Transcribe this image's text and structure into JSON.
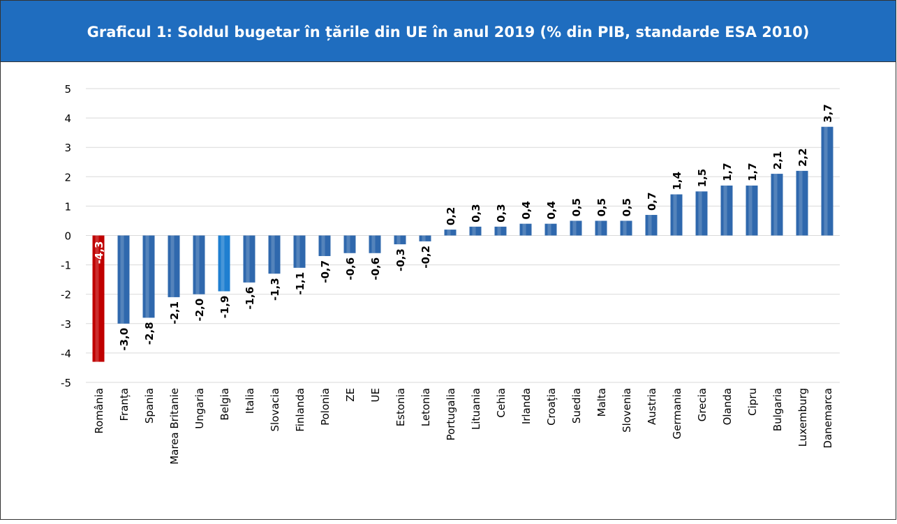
{
  "chart_data": {
    "type": "bar",
    "title": "Graficul 1: Soldul bugetar în țările din UE în anul 2019 (% din PIB, standarde ESA 2010)",
    "categories": [
      "România",
      "Franța",
      "Spania",
      "Marea Britanie",
      "Ungaria",
      "Belgia",
      "Italia",
      "Slovacia",
      "Finlanda",
      "Polonia",
      "ZE",
      "UE",
      "Estonia",
      "Letonia",
      "Portugalia",
      "Lituania",
      "Cehia",
      "Irlanda",
      "Croația",
      "Suedia",
      "Malta",
      "Slovenia",
      "Austria",
      "Germania",
      "Grecia",
      "Olanda",
      "Cipru",
      "Bulgaria",
      "Luxemburg",
      "Danemarca"
    ],
    "values": [
      -4.3,
      -3.0,
      -2.8,
      -2.1,
      -2.0,
      -1.9,
      -1.6,
      -1.3,
      -1.1,
      -0.7,
      -0.6,
      -0.6,
      -0.3,
      -0.2,
      0.2,
      0.3,
      0.3,
      0.4,
      0.4,
      0.5,
      0.5,
      0.5,
      0.7,
      1.4,
      1.5,
      1.7,
      1.7,
      2.1,
      2.2,
      3.7
    ],
    "value_labels": [
      "-4,3",
      "-3,0",
      "-2,8",
      "-2,1",
      "-2,0",
      "-1,9",
      "-1,6",
      "-1,3",
      "-1,1",
      "-0,7",
      "-0,6",
      "-0,6",
      "-0,3",
      "-0,2",
      "0,2",
      "0,3",
      "0,3",
      "0,4",
      "0,4",
      "0,5",
      "0,5",
      "0,5",
      "0,7",
      "1,4",
      "1,5",
      "1,7",
      "1,7",
      "2,1",
      "2,2",
      "3,7"
    ],
    "colors": [
      "#c00000",
      "#2f68ad",
      "#2f68ad",
      "#2f68ad",
      "#2f68ad",
      "#1f7fd0",
      "#2f68ad",
      "#2f68ad",
      "#2f68ad",
      "#2f68ad",
      "#2f68ad",
      "#2f68ad",
      "#2f68ad",
      "#2f68ad",
      "#2f68ad",
      "#2f68ad",
      "#2f68ad",
      "#2f68ad",
      "#2f68ad",
      "#2f68ad",
      "#2f68ad",
      "#2f68ad",
      "#2f68ad",
      "#2f68ad",
      "#2f68ad",
      "#2f68ad",
      "#2f68ad",
      "#2f68ad",
      "#2f68ad",
      "#2f68ad"
    ],
    "ylim": [
      -5,
      5
    ],
    "yticks": [
      -5,
      -4,
      -3,
      -2,
      -1,
      0,
      1,
      2,
      3,
      4,
      5
    ],
    "grid": true
  }
}
